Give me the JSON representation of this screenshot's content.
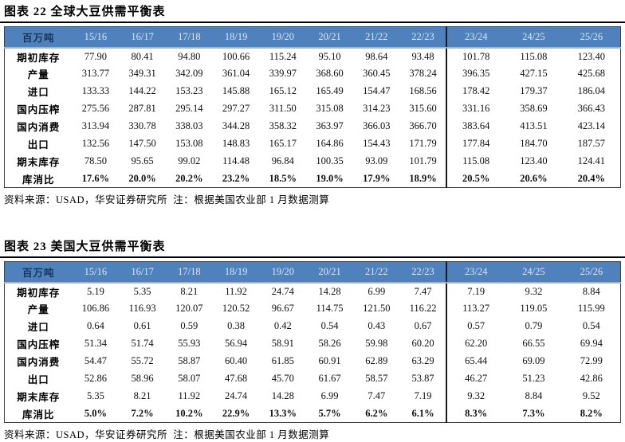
{
  "colors": {
    "header_bg": "#4f81bd",
    "header_year_text": "#dce6f2",
    "header_unit_text": "#17365d",
    "header_underline": "#98b6d8",
    "table_border": "#404040",
    "divider": "#1a1a1a",
    "title_rule": "#000000"
  },
  "tables": [
    {
      "title": "图表 22 全球大豆供需平衡表",
      "unit_label": "百万吨",
      "columns": [
        "15/16",
        "16/17",
        "17/18",
        "18/19",
        "19/20",
        "20/21",
        "21/22",
        "22/23",
        "23/24",
        "24/25",
        "25/26"
      ],
      "forecast_divider_before_column": "23/24",
      "rows": [
        {
          "label": "期初库存",
          "values": [
            "77.90",
            "80.41",
            "94.80",
            "100.66",
            "115.24",
            "95.10",
            "98.64",
            "93.48",
            "101.78",
            "115.08",
            "123.40"
          ]
        },
        {
          "label": "产量",
          "values": [
            "313.77",
            "349.31",
            "342.09",
            "361.04",
            "339.97",
            "368.60",
            "360.45",
            "378.24",
            "396.35",
            "427.15",
            "425.68"
          ]
        },
        {
          "label": "进口",
          "values": [
            "133.33",
            "144.22",
            "153.23",
            "145.88",
            "165.12",
            "165.49",
            "154.47",
            "168.56",
            "178.42",
            "179.37",
            "186.04"
          ]
        },
        {
          "label": "国内压榨",
          "values": [
            "275.56",
            "287.81",
            "295.14",
            "297.27",
            "311.50",
            "315.08",
            "314.23",
            "315.60",
            "331.16",
            "358.69",
            "366.43"
          ]
        },
        {
          "label": "国内消费",
          "values": [
            "313.94",
            "330.78",
            "338.03",
            "344.28",
            "358.32",
            "363.97",
            "366.03",
            "366.70",
            "383.64",
            "413.51",
            "423.14"
          ]
        },
        {
          "label": "出口",
          "values": [
            "132.56",
            "147.50",
            "153.08",
            "148.83",
            "165.17",
            "164.86",
            "154.43",
            "171.79",
            "177.84",
            "184.70",
            "187.57"
          ]
        },
        {
          "label": "期末库存",
          "values": [
            "78.50",
            "95.65",
            "99.02",
            "114.48",
            "96.84",
            "100.35",
            "93.09",
            "101.79",
            "115.08",
            "123.40",
            "124.41"
          ]
        },
        {
          "label": "库消比",
          "bold": true,
          "values": [
            "17.6%",
            "20.0%",
            "20.2%",
            "23.2%",
            "18.5%",
            "19.0%",
            "17.9%",
            "18.9%",
            "20.5%",
            "20.6%",
            "20.4%"
          ]
        }
      ],
      "source": "资料来源：USAD，华安证券研究所  注：根据美国农业部 1 月数据测算"
    },
    {
      "title": "图表 23 美国大豆供需平衡表",
      "unit_label": "百万吨",
      "columns": [
        "15/16",
        "16/17",
        "17/18",
        "18/19",
        "19/20",
        "20/21",
        "21/22",
        "22/23",
        "23/24",
        "24/25",
        "25/26"
      ],
      "forecast_divider_before_column": "23/24",
      "rows": [
        {
          "label": "期初库存",
          "values": [
            "5.19",
            "5.35",
            "8.21",
            "11.92",
            "24.74",
            "14.28",
            "6.99",
            "7.47",
            "7.19",
            "9.32",
            "8.84"
          ]
        },
        {
          "label": "产量",
          "values": [
            "106.86",
            "116.93",
            "120.07",
            "120.52",
            "96.67",
            "114.75",
            "121.50",
            "116.22",
            "113.27",
            "119.05",
            "115.99"
          ]
        },
        {
          "label": "进口",
          "values": [
            "0.64",
            "0.61",
            "0.59",
            "0.38",
            "0.42",
            "0.54",
            "0.43",
            "0.67",
            "0.57",
            "0.79",
            "0.54"
          ]
        },
        {
          "label": "国内压榨",
          "values": [
            "51.34",
            "51.74",
            "55.93",
            "56.94",
            "58.91",
            "58.26",
            "59.98",
            "60.20",
            "62.20",
            "66.55",
            "69.94"
          ]
        },
        {
          "label": "国内消费",
          "values": [
            "54.47",
            "55.72",
            "58.87",
            "60.40",
            "61.85",
            "60.91",
            "62.89",
            "63.29",
            "65.44",
            "69.09",
            "72.99"
          ]
        },
        {
          "label": "出口",
          "values": [
            "52.86",
            "58.96",
            "58.07",
            "47.68",
            "45.70",
            "61.67",
            "58.57",
            "53.87",
            "46.27",
            "51.23",
            "42.86"
          ]
        },
        {
          "label": "期末库存",
          "values": [
            "5.35",
            "8.21",
            "11.92",
            "24.74",
            "14.28",
            "6.99",
            "7.47",
            "7.19",
            "9.32",
            "8.84",
            "9.52"
          ]
        },
        {
          "label": "库消比",
          "bold": true,
          "values": [
            "5.0%",
            "7.2%",
            "10.2%",
            "22.9%",
            "13.3%",
            "5.7%",
            "6.2%",
            "6.1%",
            "8.3%",
            "7.3%",
            "8.2%"
          ]
        }
      ],
      "source": "资料来源：USAD，华安证券研究所  注：根据美国农业部 1 月数据测算"
    }
  ]
}
